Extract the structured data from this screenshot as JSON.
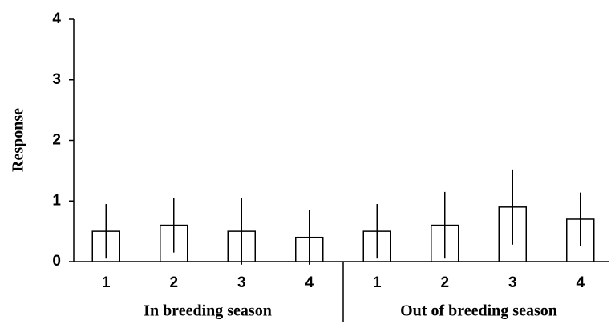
{
  "chart_data": {
    "type": "bar",
    "y_label": "Response",
    "groups": [
      {
        "name": "In breeding season",
        "categories": [
          "1",
          "2",
          "3",
          "4"
        ],
        "values": [
          0.5,
          0.6,
          0.5,
          0.4
        ],
        "errors": [
          0.45,
          0.45,
          0.55,
          0.45
        ]
      },
      {
        "name": "Out of breeding season",
        "categories": [
          "1",
          "2",
          "3",
          "4"
        ],
        "values": [
          0.5,
          0.6,
          0.9,
          0.7
        ],
        "errors": [
          0.45,
          0.55,
          0.62,
          0.44
        ]
      }
    ],
    "color": "#ffffff",
    "edge_color": "#000000",
    "ylim": [
      0,
      4
    ],
    "yticks": [
      0,
      1,
      2,
      3,
      4
    ],
    "grid": false
  }
}
